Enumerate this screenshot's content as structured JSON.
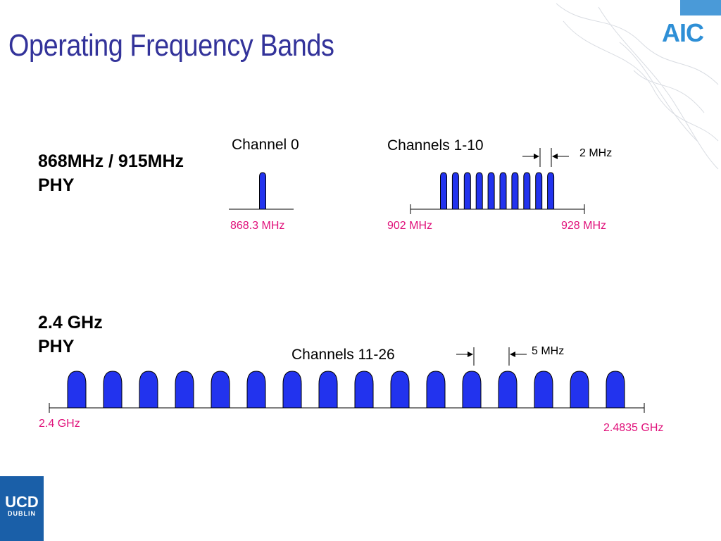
{
  "title": "Operating Frequency Bands",
  "sub_ghz": {
    "phy_label_line1": "868MHz / 915MHz",
    "phy_label_line2": "PHY",
    "channel0": {
      "label": "Channel 0",
      "freq": "868.3 MHz"
    },
    "channels_1_10": {
      "label": "Channels 1-10",
      "start_freq": "902 MHz",
      "end_freq": "928 MHz",
      "spacing": "2 MHz",
      "count": 10
    }
  },
  "ghz24": {
    "phy_label_line1": "2.4 GHz",
    "phy_label_line2": "PHY",
    "channels_11_26": {
      "label": "Channels 11-26",
      "start_freq": "2.4 GHz",
      "end_freq": "2.4835 GHz",
      "spacing": "5 MHz",
      "count": 16
    }
  },
  "logos": {
    "top_right": "AIC",
    "bottom_left_main": "UCD",
    "bottom_left_sub": "DUBLIN"
  },
  "colors": {
    "title": "#33339a",
    "channel_fill": "#2233ee",
    "freq_text": "#e0107a"
  }
}
